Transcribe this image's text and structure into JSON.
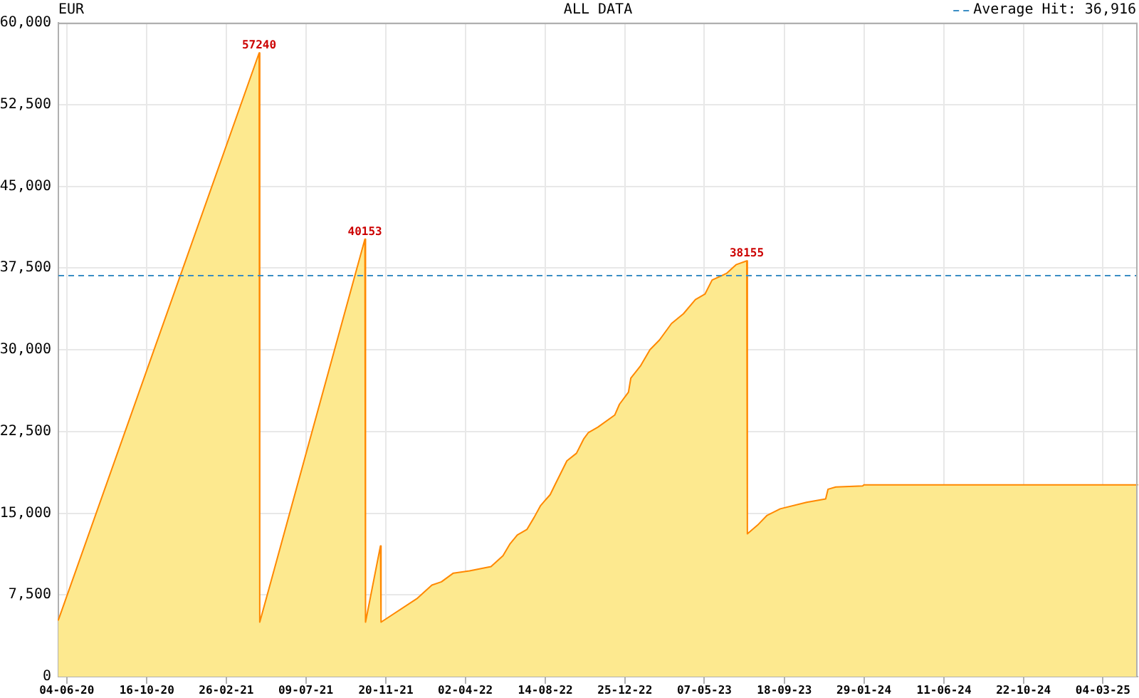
{
  "chart_data": {
    "type": "area",
    "title": "EUR",
    "subtitle": "ALL DATA",
    "x": [
      "2020-05-21",
      "2021-04-22",
      "2021-04-23",
      "2021-10-16",
      "2021-10-17",
      "2021-11-11",
      "2021-11-12",
      "2022-01-12",
      "2022-02-05",
      "2022-02-21",
      "2022-03-13",
      "2022-04-09",
      "2022-05-15",
      "2022-06-04",
      "2022-06-16",
      "2022-06-28",
      "2022-07-14",
      "2022-07-26",
      "2022-08-06",
      "2022-08-22",
      "2022-08-30",
      "2022-09-19",
      "2022-10-05",
      "2022-10-17",
      "2022-10-25",
      "2022-11-10",
      "2022-12-08",
      "2022-12-16",
      "2022-12-31",
      "2023-01-04",
      "2023-01-20",
      "2023-02-05",
      "2023-02-21",
      "2023-03-13",
      "2023-04-02",
      "2023-04-22",
      "2023-05-08",
      "2023-05-20",
      "2023-06-13",
      "2023-06-29",
      "2023-07-17",
      "2023-07-18",
      "2023-08-04",
      "2023-08-20",
      "2023-09-11",
      "2023-10-25",
      "2023-11-26",
      "2023-11-30",
      "2023-12-13",
      "2024-01-27",
      "2024-01-29",
      "2025-05-01"
    ],
    "values": [
      5200,
      57240,
      5000,
      40153,
      5000,
      12000,
      5000,
      7200,
      8400,
      8700,
      9500,
      9700,
      10100,
      11100,
      12200,
      13000,
      13500,
      14600,
      15700,
      16700,
      17600,
      19800,
      20500,
      21800,
      22400,
      22900,
      24000,
      25000,
      26100,
      27400,
      28500,
      30000,
      30900,
      32400,
      33300,
      34600,
      35100,
      36400,
      37000,
      37800,
      38155,
      13100,
      13900,
      14800,
      15400,
      16000,
      16300,
      17200,
      17400,
      17500,
      17600,
      17600
    ],
    "value_labels": [
      null,
      "57240",
      null,
      "40153",
      null,
      null,
      null,
      null,
      null,
      null,
      null,
      null,
      null,
      null,
      null,
      null,
      null,
      null,
      null,
      null,
      null,
      null,
      null,
      null,
      null,
      null,
      null,
      null,
      null,
      null,
      null,
      null,
      null,
      null,
      null,
      null,
      null,
      null,
      null,
      null,
      "38155",
      null,
      null,
      null,
      null,
      null,
      null,
      null,
      null,
      null,
      null,
      null
    ],
    "color": "#fde98f",
    "xlim": [
      "2020-05-21",
      "2025-05-01"
    ],
    "xticks": [
      {
        "value": "2020-06-04",
        "label": "04-06-20"
      },
      {
        "value": "2020-10-16",
        "label": "16-10-20"
      },
      {
        "value": "2021-02-26",
        "label": "26-02-21"
      },
      {
        "value": "2021-07-09",
        "label": "09-07-21"
      },
      {
        "value": "2021-11-20",
        "label": "20-11-21"
      },
      {
        "value": "2022-04-02",
        "label": "02-04-22"
      },
      {
        "value": "2022-08-14",
        "label": "14-08-22"
      },
      {
        "value": "2022-12-25",
        "label": "25-12-22"
      },
      {
        "value": "2023-05-07",
        "label": "07-05-23"
      },
      {
        "value": "2023-09-18",
        "label": "18-09-23"
      },
      {
        "value": "2024-01-29",
        "label": "29-01-24"
      },
      {
        "value": "2024-06-11",
        "label": "11-06-24"
      },
      {
        "value": "2024-10-22",
        "label": "22-10-24"
      },
      {
        "value": "2025-03-04",
        "label": "04-03-25"
      }
    ],
    "ylim": [
      0,
      60000
    ],
    "yticks": [
      0,
      {
        "value": 7500,
        "label": "7,500"
      },
      {
        "value": 15000,
        "label": "15,000"
      },
      {
        "value": 22500,
        "label": "22,500"
      },
      {
        "value": 30000,
        "label": "30,000"
      },
      {
        "value": 37500,
        "label": "37,500"
      },
      {
        "value": 45000,
        "label": "45,000"
      },
      {
        "value": 52500,
        "label": "52,500"
      },
      {
        "value": 60000,
        "label": "60,000"
      }
    ],
    "ref_lines": [
      {
        "axis": "y",
        "value": 36916,
        "label": "Average Hit: 36,916",
        "color": "#3a8dc4",
        "line_style": "dashed"
      }
    ],
    "grid": true,
    "marker": "none",
    "line_style": "solid"
  }
}
